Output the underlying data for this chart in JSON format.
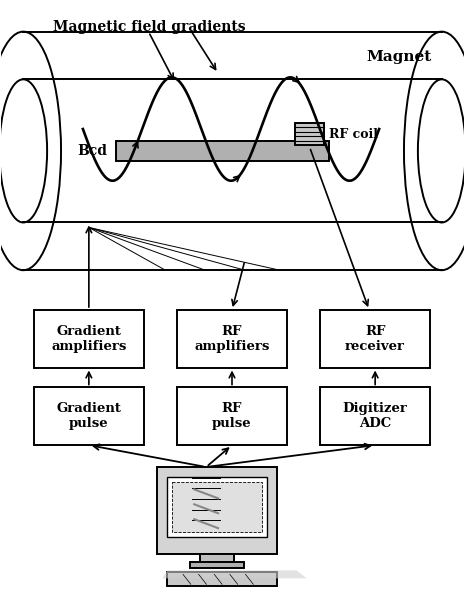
{
  "bg_color": "#ffffff",
  "magnet_label": "Magnet",
  "bcd_label": "Bcd",
  "rf_coil_label": "RF coil",
  "mag_field_label": "Magnetic field gradients",
  "boxes_row1": [
    "Gradient\namplifiers",
    "RF\namplifiers",
    "RF\nreceiver"
  ],
  "boxes_row2": [
    "Gradient\npulse",
    "RF\npulse",
    "Digitizer\nADC"
  ],
  "line_color": "#000000",
  "text_color": "#000000"
}
